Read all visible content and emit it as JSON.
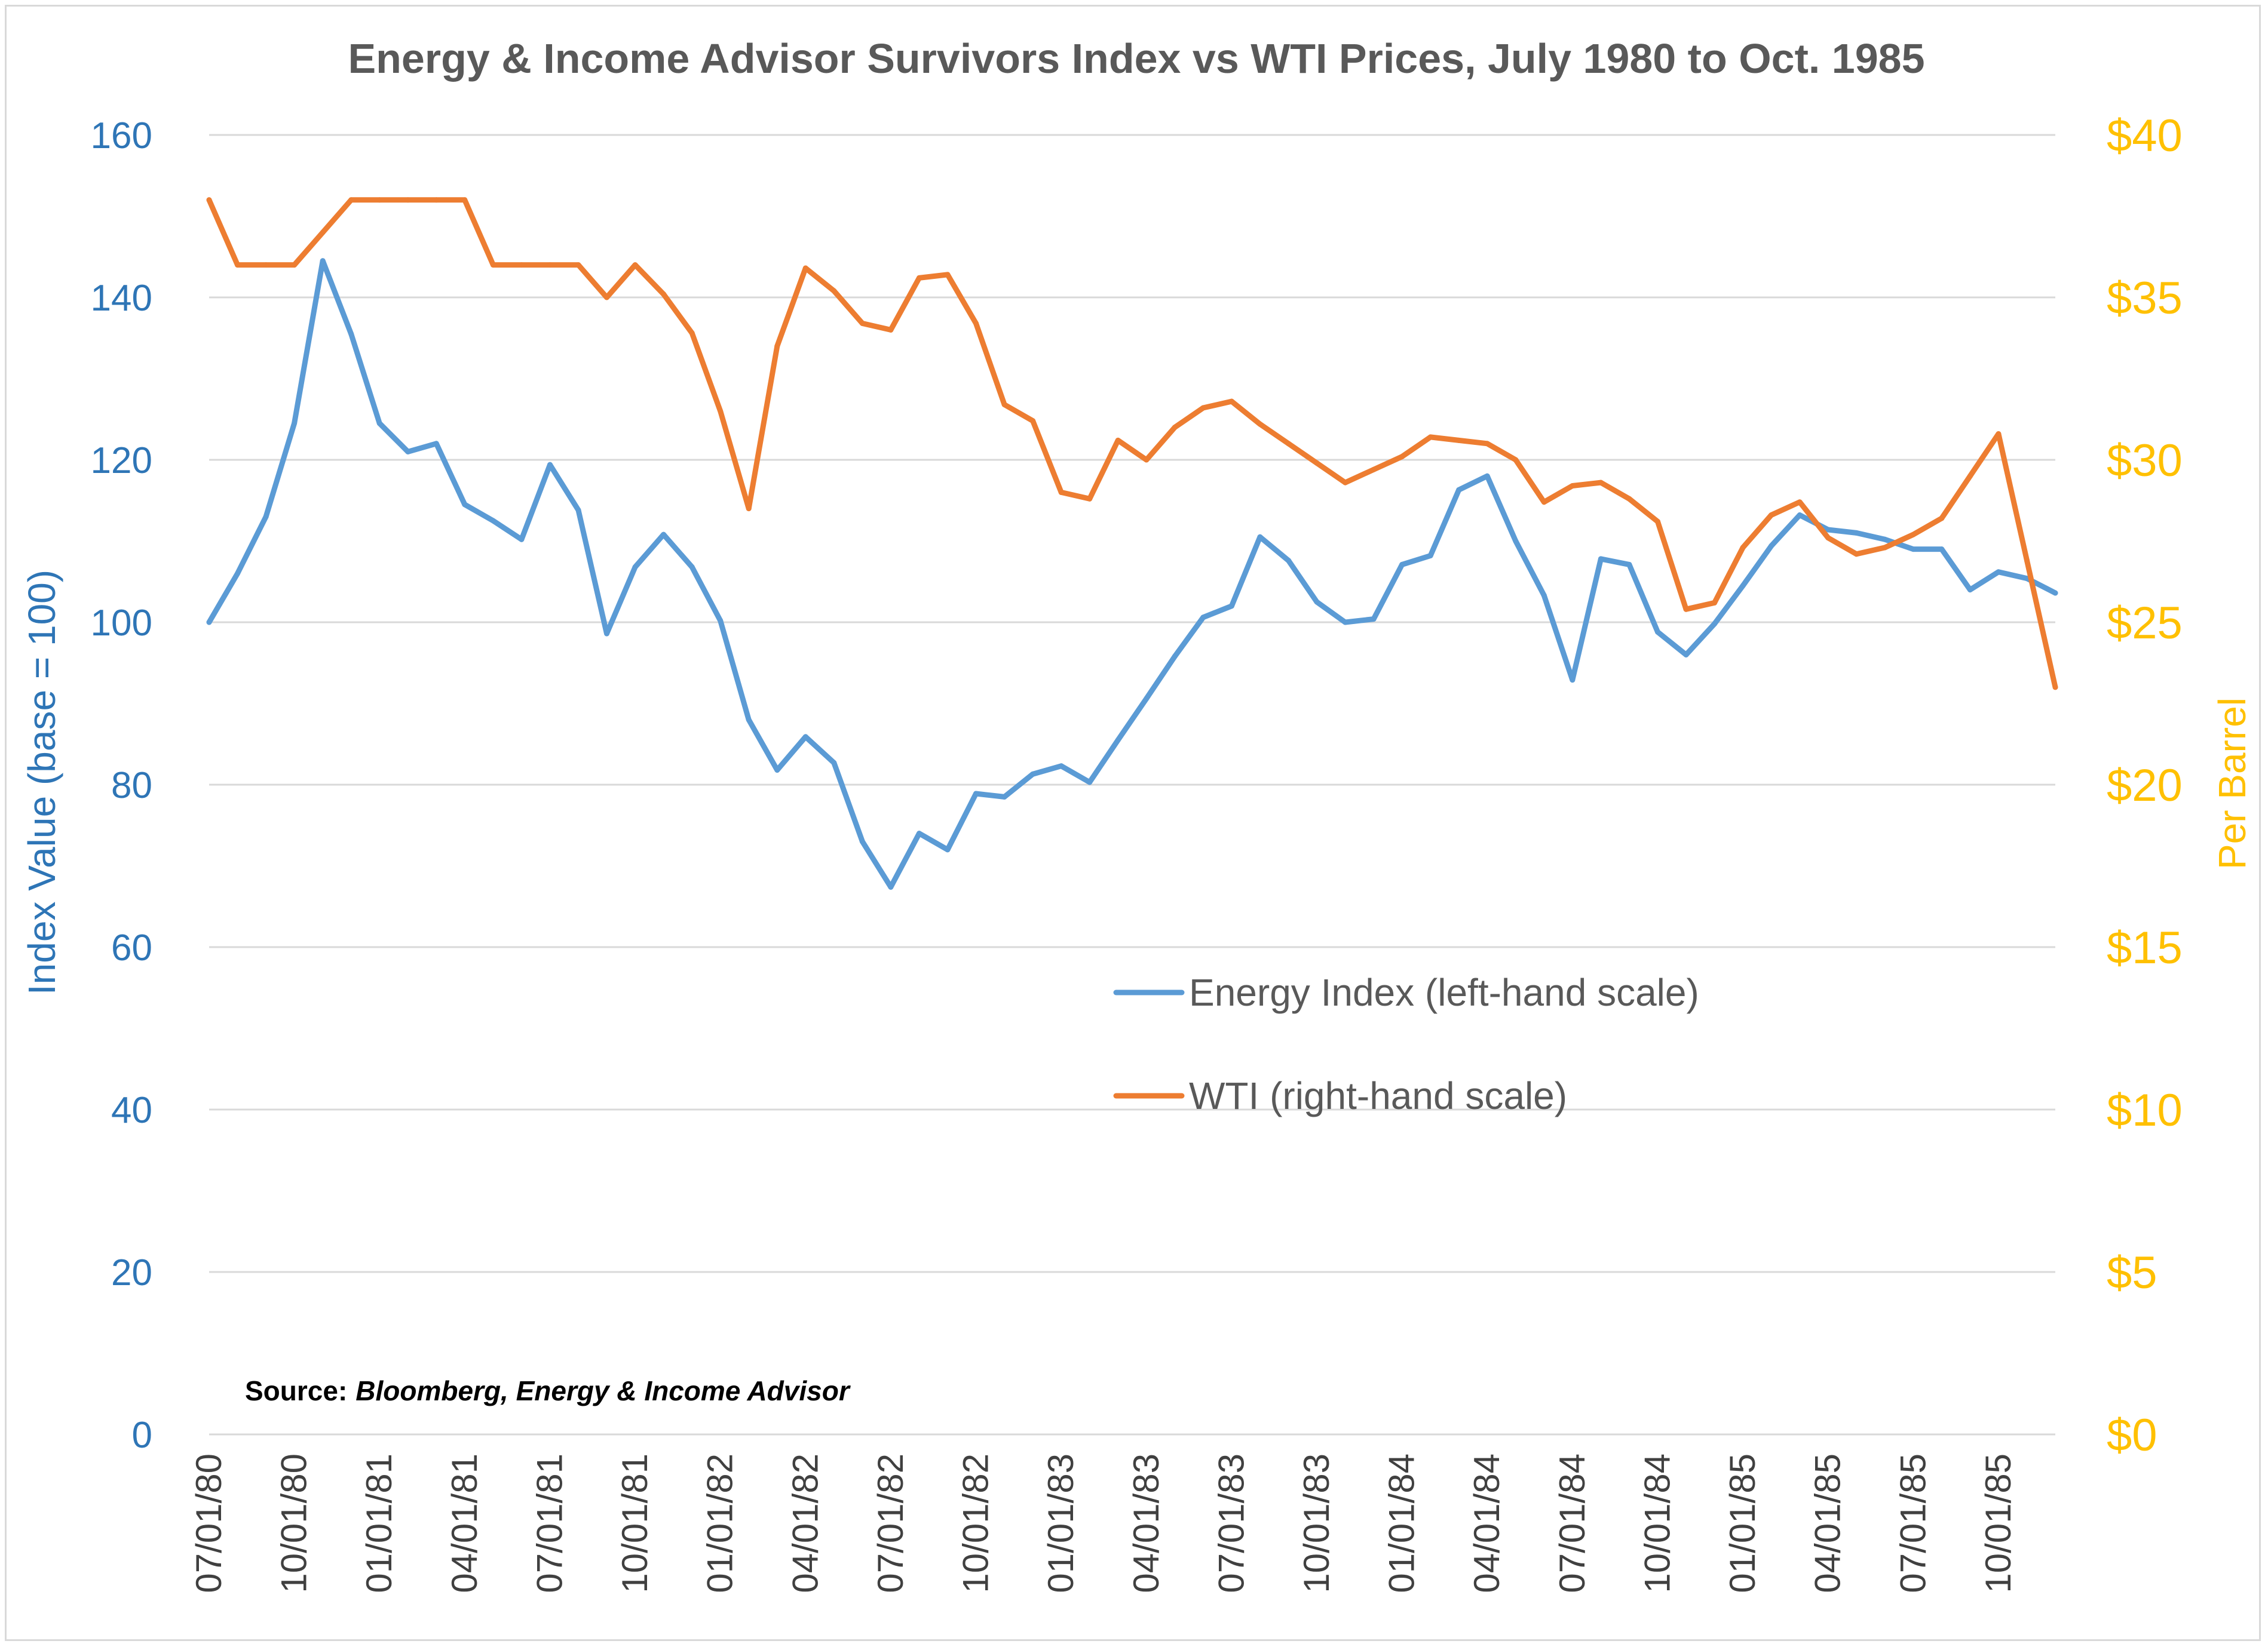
{
  "chart_data": {
    "type": "line",
    "title": "Energy & Income Advisor Survivors Index vs WTI Prices, July 1980 to Oct. 1985",
    "ylabel_left": "Index Value (base = 100)",
    "ylabel_right": "Per Barrel",
    "ylim_left": [
      0,
      160
    ],
    "ylim_right": [
      0,
      40
    ],
    "yticks_left": [
      "0",
      "20",
      "40",
      "60",
      "80",
      "100",
      "120",
      "140",
      "160"
    ],
    "yticks_right": [
      "$0",
      "$5",
      "$10",
      "$15",
      "$20",
      "$25",
      "$30",
      "$35",
      "$40"
    ],
    "xlim": [
      "1980-07-01",
      "1985-12-01"
    ],
    "xticks": [
      {
        "date": "1980-07-01",
        "label": "07/01/80"
      },
      {
        "date": "1980-10-01",
        "label": "10/01/80"
      },
      {
        "date": "1981-01-01",
        "label": "01/01/81"
      },
      {
        "date": "1981-04-01",
        "label": "04/01/81"
      },
      {
        "date": "1981-07-01",
        "label": "07/01/81"
      },
      {
        "date": "1981-10-01",
        "label": "10/01/81"
      },
      {
        "date": "1982-01-01",
        "label": "01/01/82"
      },
      {
        "date": "1982-04-01",
        "label": "04/01/82"
      },
      {
        "date": "1982-07-01",
        "label": "07/01/82"
      },
      {
        "date": "1982-10-01",
        "label": "10/01/82"
      },
      {
        "date": "1983-01-01",
        "label": "01/01/83"
      },
      {
        "date": "1983-04-01",
        "label": "04/01/83"
      },
      {
        "date": "1983-07-01",
        "label": "07/01/83"
      },
      {
        "date": "1983-10-01",
        "label": "10/01/83"
      },
      {
        "date": "1984-01-01",
        "label": "01/01/84"
      },
      {
        "date": "1984-04-01",
        "label": "04/01/84"
      },
      {
        "date": "1984-07-01",
        "label": "07/01/84"
      },
      {
        "date": "1984-10-01",
        "label": "10/01/84"
      },
      {
        "date": "1985-01-01",
        "label": "01/01/85"
      },
      {
        "date": "1985-04-01",
        "label": "04/01/85"
      },
      {
        "date": "1985-07-01",
        "label": "07/01/85"
      },
      {
        "date": "1985-10-01",
        "label": "10/01/85"
      }
    ],
    "grid": true,
    "legend_placement": "center-right",
    "series": [
      {
        "name": "Energy Index (left-hand scale)",
        "axis": "left",
        "color": "#5b9bd5",
        "points": [
          [
            "1980-07-01",
            100
          ],
          [
            "1980-08-01",
            106
          ],
          [
            "1980-09-01",
            113
          ],
          [
            "1980-10-01",
            124.5
          ],
          [
            "1980-11-01",
            144.5
          ],
          [
            "1980-12-01",
            135.5
          ],
          [
            "1981-01-01",
            124.5
          ],
          [
            "1981-02-01",
            121
          ],
          [
            "1981-03-01",
            122
          ],
          [
            "1981-04-01",
            114.5
          ],
          [
            "1981-05-01",
            112.5
          ],
          [
            "1981-06-01",
            110.2
          ],
          [
            "1981-07-01",
            119.4
          ],
          [
            "1981-08-01",
            113.8
          ],
          [
            "1981-09-01",
            98.6
          ],
          [
            "1981-10-01",
            106.8
          ],
          [
            "1981-11-01",
            110.8
          ],
          [
            "1981-12-01",
            106.8
          ],
          [
            "1982-01-01",
            100.2
          ],
          [
            "1982-02-01",
            88
          ],
          [
            "1982-03-01",
            81.8
          ],
          [
            "1982-04-01",
            85.9
          ],
          [
            "1982-05-01",
            82.7
          ],
          [
            "1982-06-01",
            73
          ],
          [
            "1982-07-01",
            67.4
          ],
          [
            "1982-08-01",
            74
          ],
          [
            "1982-09-01",
            72
          ],
          [
            "1982-10-01",
            78.9
          ],
          [
            "1982-11-01",
            78.5
          ],
          [
            "1982-12-01",
            81.3
          ],
          [
            "1983-01-01",
            82.3
          ],
          [
            "1983-02-01",
            80.3
          ],
          [
            "1983-03-01",
            85.5
          ],
          [
            "1983-04-01",
            90.6
          ],
          [
            "1983-05-01",
            95.8
          ],
          [
            "1983-06-01",
            100.6
          ],
          [
            "1983-07-01",
            102
          ],
          [
            "1983-08-01",
            110.5
          ],
          [
            "1983-09-01",
            107.6
          ],
          [
            "1983-10-01",
            102.5
          ],
          [
            "1983-11-01",
            100
          ],
          [
            "1983-12-01",
            100.4
          ],
          [
            "1984-01-01",
            107.1
          ],
          [
            "1984-02-01",
            108.2
          ],
          [
            "1984-03-01",
            116.3
          ],
          [
            "1984-04-01",
            118
          ],
          [
            "1984-05-01",
            110
          ],
          [
            "1984-06-01",
            103.3
          ],
          [
            "1984-07-01",
            92.9
          ],
          [
            "1984-08-01",
            107.8
          ],
          [
            "1984-09-01",
            107.1
          ],
          [
            "1984-10-01",
            98.8
          ],
          [
            "1984-11-01",
            96
          ],
          [
            "1984-12-01",
            99.8
          ],
          [
            "1985-01-01",
            104.5
          ],
          [
            "1985-02-01",
            109.4
          ],
          [
            "1985-03-01",
            113.2
          ],
          [
            "1985-04-01",
            111.4
          ],
          [
            "1985-05-01",
            111
          ],
          [
            "1985-06-01",
            110.2
          ],
          [
            "1985-07-01",
            109
          ],
          [
            "1985-08-01",
            109
          ],
          [
            "1985-09-01",
            104
          ],
          [
            "1985-10-01",
            106.2
          ],
          [
            "1985-11-01",
            105.4
          ],
          [
            "1985-12-01",
            103.6
          ]
        ]
      },
      {
        "name": "WTI (right-hand scale)",
        "axis": "right",
        "color": "#ed7d31",
        "points": [
          [
            "1980-07-01",
            38
          ],
          [
            "1980-08-01",
            36
          ],
          [
            "1980-09-01",
            36
          ],
          [
            "1980-10-01",
            36
          ],
          [
            "1980-11-01",
            37
          ],
          [
            "1980-12-01",
            38
          ],
          [
            "1981-01-01",
            38
          ],
          [
            "1981-02-01",
            38
          ],
          [
            "1981-03-01",
            38
          ],
          [
            "1981-04-01",
            38
          ],
          [
            "1981-05-01",
            36
          ],
          [
            "1981-06-01",
            36
          ],
          [
            "1981-07-01",
            36
          ],
          [
            "1981-08-01",
            36
          ],
          [
            "1981-09-01",
            35
          ],
          [
            "1981-10-01",
            36
          ],
          [
            "1981-11-01",
            35.1
          ],
          [
            "1981-12-01",
            33.9
          ],
          [
            "1982-01-01",
            31.5
          ],
          [
            "1982-02-01",
            28.5
          ],
          [
            "1982-03-01",
            33.5
          ],
          [
            "1982-04-01",
            35.9
          ],
          [
            "1982-05-01",
            35.2
          ],
          [
            "1982-06-01",
            34.2
          ],
          [
            "1982-07-01",
            34
          ],
          [
            "1982-08-01",
            35.6
          ],
          [
            "1982-09-01",
            35.7
          ],
          [
            "1982-10-01",
            34.2
          ],
          [
            "1982-11-01",
            31.7
          ],
          [
            "1982-12-01",
            31.2
          ],
          [
            "1983-01-01",
            29
          ],
          [
            "1983-02-01",
            28.8
          ],
          [
            "1983-03-01",
            30.6
          ],
          [
            "1983-04-01",
            30
          ],
          [
            "1983-05-01",
            31
          ],
          [
            "1983-06-01",
            31.6
          ],
          [
            "1983-07-01",
            31.8
          ],
          [
            "1983-08-01",
            31.1
          ],
          [
            "1983-09-01",
            30.5
          ],
          [
            "1983-10-01",
            29.9
          ],
          [
            "1983-11-01",
            29.3
          ],
          [
            "1983-12-01",
            29.7
          ],
          [
            "1984-01-01",
            30.1
          ],
          [
            "1984-02-01",
            30.7
          ],
          [
            "1984-03-01",
            30.6
          ],
          [
            "1984-04-01",
            30.5
          ],
          [
            "1984-05-01",
            30
          ],
          [
            "1984-06-01",
            28.7
          ],
          [
            "1984-07-01",
            29.2
          ],
          [
            "1984-08-01",
            29.3
          ],
          [
            "1984-09-01",
            28.8
          ],
          [
            "1984-10-01",
            28.1
          ],
          [
            "1984-11-01",
            25.4
          ],
          [
            "1984-12-01",
            25.6
          ],
          [
            "1985-01-01",
            27.3
          ],
          [
            "1985-02-01",
            28.3
          ],
          [
            "1985-03-01",
            28.7
          ],
          [
            "1985-04-01",
            27.6
          ],
          [
            "1985-05-01",
            27.1
          ],
          [
            "1985-06-01",
            27.3
          ],
          [
            "1985-07-01",
            27.7
          ],
          [
            "1985-08-01",
            28.2
          ],
          [
            "1985-09-01",
            29.5
          ],
          [
            "1985-10-01",
            30.8
          ],
          [
            "1985-11-01",
            26.9
          ],
          [
            "1985-12-01",
            23
          ]
        ]
      }
    ],
    "source_label": "Source:",
    "source_value": "Bloomberg, Energy & Income Advisor"
  }
}
